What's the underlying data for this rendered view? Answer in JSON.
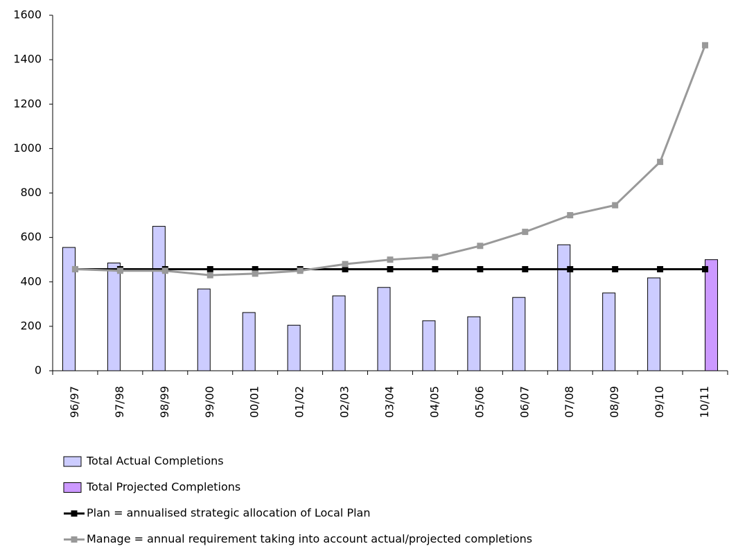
{
  "chart_data": {
    "type": "bar_line",
    "categories": [
      "96/97",
      "97/98",
      "98/99",
      "99/00",
      "00/01",
      "01/02",
      "02/03",
      "03/04",
      "04/05",
      "05/06",
      "06/07",
      "07/08",
      "08/09",
      "09/10",
      "10/11"
    ],
    "series": [
      {
        "name": "Total Actual Completions",
        "kind": "bar",
        "color": "#ccccff",
        "values": [
          555,
          485,
          650,
          368,
          262,
          205,
          337,
          375,
          225,
          243,
          330,
          567,
          350,
          418,
          null
        ]
      },
      {
        "name": "Total Projected Completions",
        "kind": "bar",
        "color": "#cc99ff",
        "values": [
          null,
          null,
          null,
          null,
          null,
          null,
          null,
          null,
          null,
          null,
          null,
          null,
          null,
          null,
          500
        ]
      },
      {
        "name": "Plan = annualised strategic allocation of Local Plan",
        "kind": "line",
        "color": "#000000",
        "values": [
          457,
          457,
          457,
          457,
          457,
          457,
          457,
          457,
          457,
          457,
          457,
          457,
          457,
          457,
          457
        ]
      },
      {
        "name": "Manage = annual requirement taking into account actual/projected completions",
        "kind": "line",
        "color": "#999999",
        "values": [
          457,
          450,
          450,
          430,
          437,
          450,
          480,
          500,
          512,
          562,
          625,
          700,
          745,
          940,
          1465
        ]
      }
    ],
    "ylim": [
      0,
      1600
    ],
    "yticks": [
      0,
      200,
      400,
      600,
      800,
      1000,
      1200,
      1400,
      1600
    ]
  }
}
